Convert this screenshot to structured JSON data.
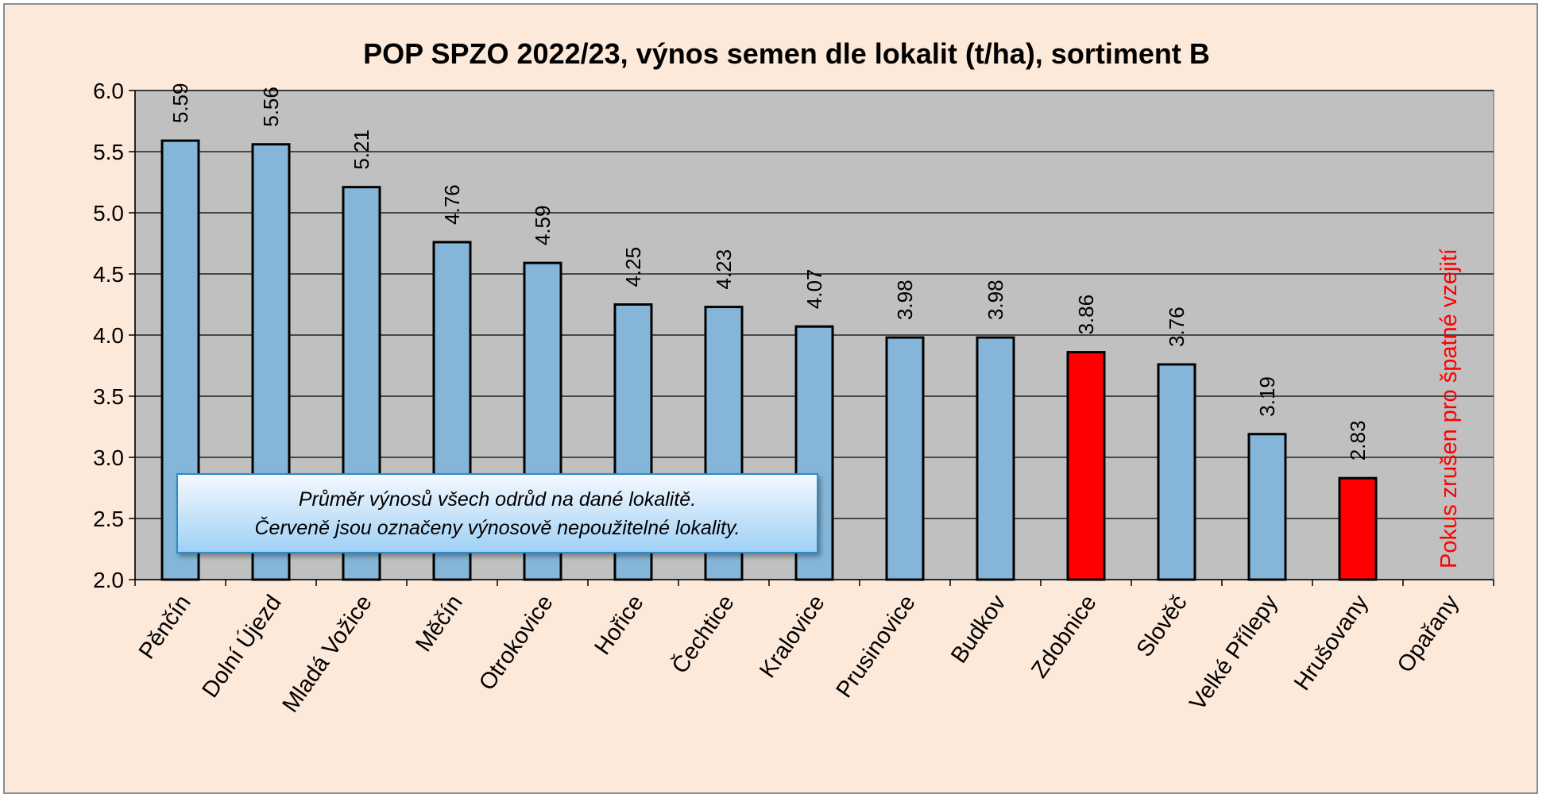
{
  "chart_data": {
    "type": "bar",
    "title": "POP SPZO 2022/23, výnos semen dle lokalit (t/ha), sortiment B",
    "xlabel": "",
    "ylabel": "",
    "ylim": [
      2.0,
      6.0
    ],
    "yticks": [
      "2.0",
      "2.5",
      "3.0",
      "3.5",
      "4.0",
      "4.5",
      "5.0",
      "5.5",
      "6.0"
    ],
    "grid": true,
    "categories": [
      "Pěnčín",
      "Dolní Újezd",
      "Mladá Vožice",
      "Měčín",
      "Otrokovice",
      "Hořice",
      "Čechtice",
      "Kralovice",
      "Prusinovice",
      "Budkov",
      "Zdobnice",
      "Slověč",
      "Velké Přílepy",
      "Hrušovany",
      "Opařany"
    ],
    "values": [
      5.59,
      5.56,
      5.21,
      4.76,
      4.59,
      4.25,
      4.23,
      4.07,
      3.98,
      3.98,
      3.86,
      3.76,
      3.19,
      2.83,
      null
    ],
    "value_labels": [
      "5.59",
      "5.56",
      "5.21",
      "4.76",
      "4.59",
      "4.25",
      "4.23",
      "4.07",
      "3.98",
      "3.98",
      "3.86",
      "3.76",
      "3.19",
      "2.83",
      ""
    ],
    "bar_status": [
      "ok",
      "ok",
      "ok",
      "ok",
      "ok",
      "ok",
      "ok",
      "ok",
      "ok",
      "ok",
      "unusable",
      "ok",
      "ok",
      "unusable",
      "cancelled"
    ],
    "colors": {
      "ok": "#85b6d9",
      "unusable": "#ff0000",
      "plot_background": "#c0c0c0",
      "chart_background": "#fde9d9",
      "cancelled_text": "#ff0000"
    },
    "cancelled_note": "Pokus zrušen pro špatné vzejití",
    "annotation": {
      "line1": "Průměr výnosů všech odrůd na dané lokalitě.",
      "line2": "Červeně jsou označeny výnosově nepoužitelné lokality."
    }
  }
}
